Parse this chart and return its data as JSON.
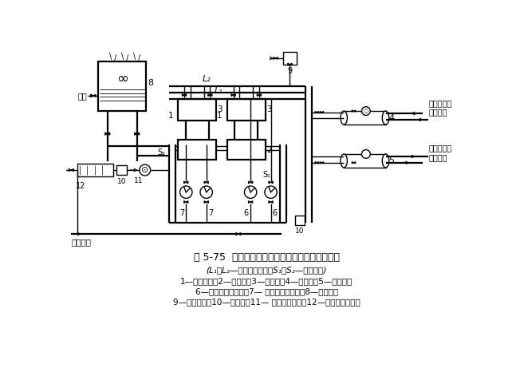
{
  "title": "图 5-75  空调冷冻水、冷却水循环系统工艺流程图",
  "subtitle": "(L₁、L₂—冷冻供回水管；S₁、S₂—冷却水管)",
  "line1": "1—冷水机组；2—冷凝器；3—蒸发器；4—分水器；5—集水器；",
  "line2": "6—冷冻水循环水泵；7— 冷却水循环水泵；8—冷却塔；",
  "line3": "9—膨胀水箱；10—除污器；11— 电子水处理仪；12—冷却水循环水箱",
  "bg_color": "#ffffff",
  "line_color": "#000000",
  "text_color": "#000000",
  "label_buishui": "补水",
  "label_ruanhua": "接软化水",
  "label_songzhi": "送至空调设\n备供水管",
  "label_laizhi": "来自空调设\n备回水管",
  "label_L2": "L₂",
  "label_L1": "L₁",
  "label_S1": "S₁",
  "label_S2": "S₂"
}
